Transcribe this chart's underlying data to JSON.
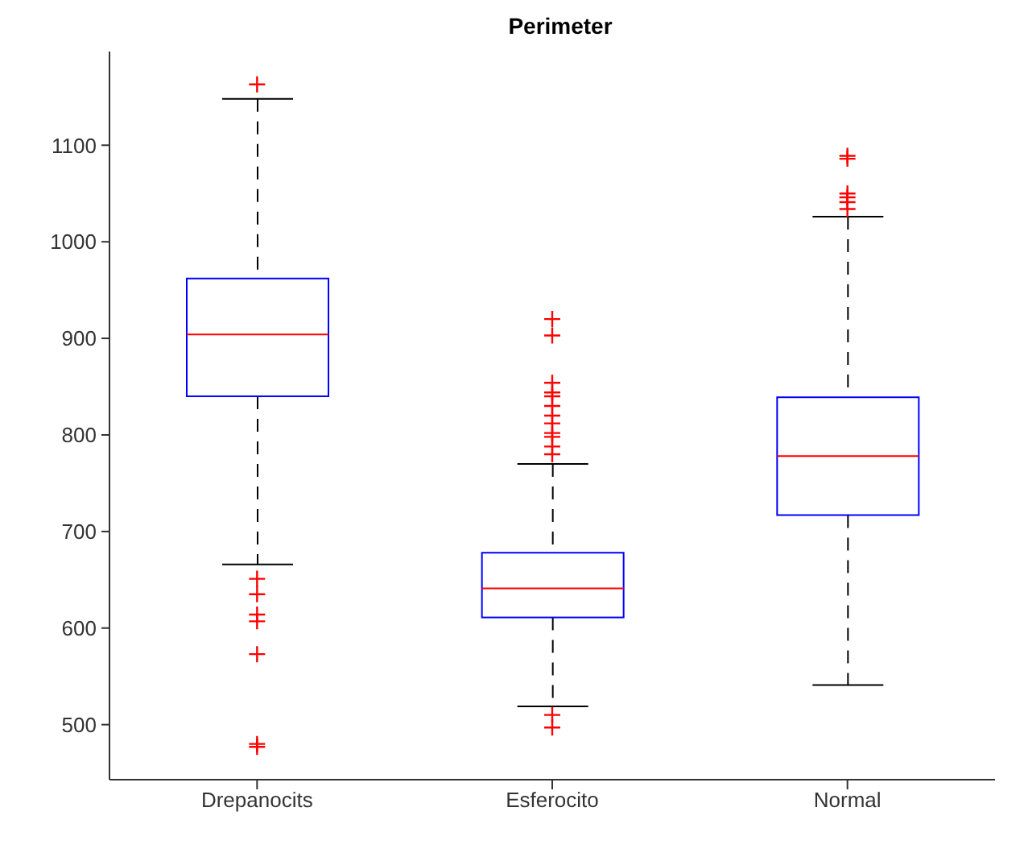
{
  "chart_data": {
    "type": "box",
    "title": "Perimeter",
    "categories": [
      "Drepanocits",
      "Esferocito",
      "Normal"
    ],
    "color": "#0000ff",
    "boxes": [
      {
        "low": 666,
        "q1": 840,
        "median": 904,
        "q3": 962,
        "high": 1148,
        "outliers": [
          1163,
          651,
          635,
          614,
          607,
          573,
          480,
          477
        ]
      },
      {
        "low": 519,
        "q1": 611,
        "median": 641,
        "q3": 678,
        "high": 770,
        "outliers": [
          920,
          903,
          854,
          844,
          840,
          830,
          820,
          812,
          802,
          798,
          788,
          780,
          510,
          497
        ]
      },
      {
        "low": 541,
        "q1": 717,
        "median": 778,
        "q3": 839,
        "high": 1026,
        "outliers": [
          1089,
          1086,
          1050,
          1046,
          1041,
          1034
        ]
      }
    ],
    "ylim": [
      443,
      1197
    ],
    "yticks": [
      500,
      600,
      700,
      800,
      900,
      1000,
      1100
    ],
    "grid": false,
    "legend": false
  }
}
